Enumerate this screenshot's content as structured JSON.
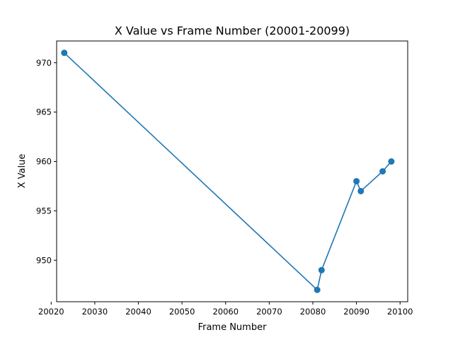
{
  "chart_data": {
    "type": "line",
    "title": "X Value vs Frame Number (20001-20099)",
    "xlabel": "Frame Number",
    "ylabel": "X Value",
    "xlim": [
      20021.25,
      20101.75
    ],
    "ylim": [
      945.8,
      972.2
    ],
    "xticks": [
      20020,
      20030,
      20040,
      20050,
      20060,
      20070,
      20080,
      20090,
      20100
    ],
    "yticks": [
      950,
      955,
      960,
      965,
      970
    ],
    "grid": false,
    "legend": "none",
    "series": [
      {
        "color": "#1f77b4",
        "marker": "circle",
        "x": [
          20023,
          20081,
          20082,
          20090,
          20091,
          20096,
          20098
        ],
        "y": [
          971,
          947,
          949,
          958,
          957,
          959,
          960
        ]
      }
    ]
  }
}
